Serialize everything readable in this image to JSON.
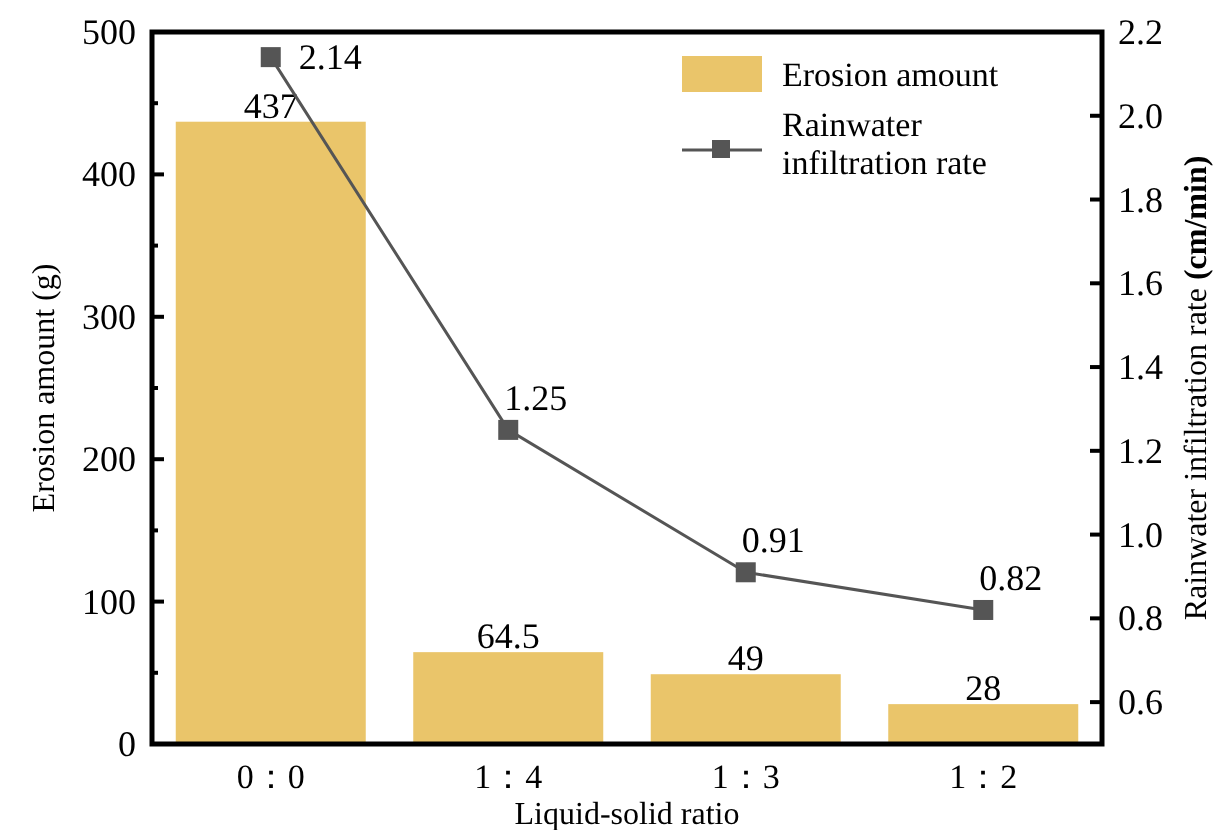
{
  "chart_data": {
    "type": "bar",
    "xlabel": "Liquid-solid ratio",
    "ylabel": "Erosion amount (g)",
    "y2label": "Rainwater infiltration rate **(cm/min)**",
    "categories": [
      "0：0",
      "1：4",
      "1：3",
      "1：2"
    ],
    "series": [
      {
        "name": "Erosion amount",
        "color": "#eac56a",
        "values": [
          437,
          64.5,
          49,
          28
        ]
      },
      {
        "name": "Rainwater infiltration rate",
        "type": "line",
        "axis": "y2",
        "color": "#555555",
        "marker": "square",
        "values": [
          2.14,
          1.25,
          0.91,
          0.82
        ]
      }
    ],
    "ylim": [
      0,
      500
    ],
    "yticks": [
      0,
      {
        "value": 50,
        "label": null
      },
      100,
      {
        "value": 150,
        "label": null
      },
      200,
      {
        "value": 250,
        "label": null
      },
      300,
      {
        "value": 350,
        "label": null
      },
      400,
      {
        "value": 450,
        "label": null
      },
      500
    ],
    "y2lim": [
      0.5,
      2.2
    ],
    "y2ticks": [
      0.6,
      0.8,
      {
        "value": 1,
        "label": "1.0"
      },
      1.2,
      1.4,
      1.6,
      1.8,
      {
        "value": 2,
        "label": "2.0"
      },
      2.2
    ],
    "data_labels": true,
    "legend": "top right"
  }
}
